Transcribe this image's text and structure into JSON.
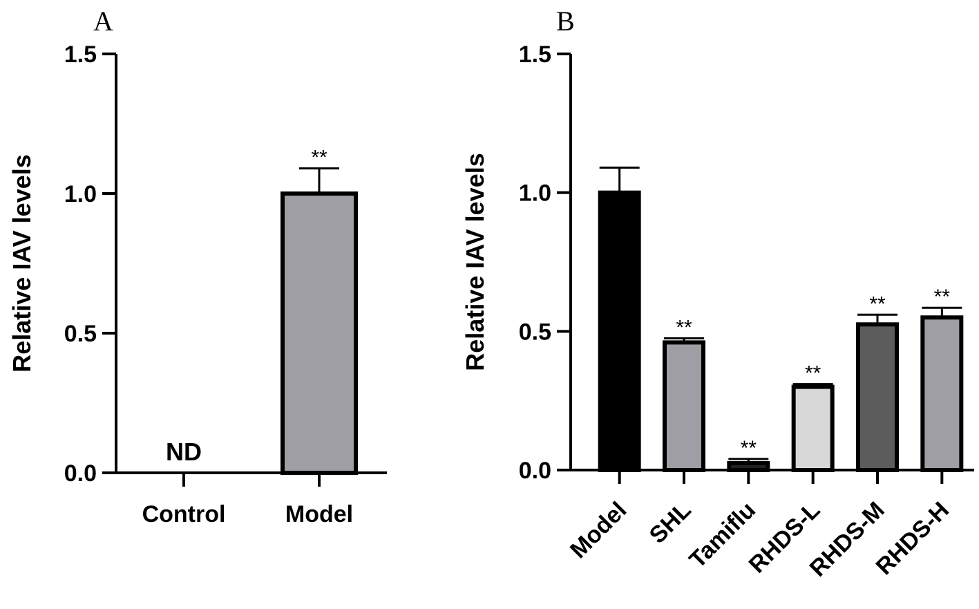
{
  "chart_data": [
    {
      "panel": "A",
      "type": "bar",
      "ylabel": "Relative IAV levels",
      "ylim": [
        0,
        1.5
      ],
      "yticks": [
        "0.0",
        "0.5",
        "1.0",
        "1.5"
      ],
      "categories": [
        "Control",
        "Model"
      ],
      "values": [
        null,
        1.0
      ],
      "errors": [
        null,
        0.09
      ],
      "fills": [
        null,
        "#9e9ea4"
      ],
      "annotations": [
        "ND",
        "**"
      ],
      "label_rotation": 0
    },
    {
      "panel": "B",
      "type": "bar",
      "ylabel": "Relative IAV levels",
      "ylim": [
        0,
        1.5
      ],
      "yticks": [
        "0.0",
        "0.5",
        "1.0",
        "1.5"
      ],
      "categories": [
        "Model",
        "SHL",
        "Tamiflu",
        "RHDS-L",
        "RHDS-M",
        "RHDS-H"
      ],
      "values": [
        1.0,
        0.46,
        0.025,
        0.3,
        0.525,
        0.55
      ],
      "errors": [
        0.09,
        0.015,
        0.015,
        0.01,
        0.035,
        0.035
      ],
      "fills": [
        "#000000",
        "#9e9ea4",
        "#222222",
        "#d8d8d8",
        "#5c5c5c",
        "#9e9ea4"
      ],
      "annotations": [
        "",
        "**",
        "**",
        "**",
        "**",
        "**"
      ],
      "label_rotation": -45
    }
  ]
}
